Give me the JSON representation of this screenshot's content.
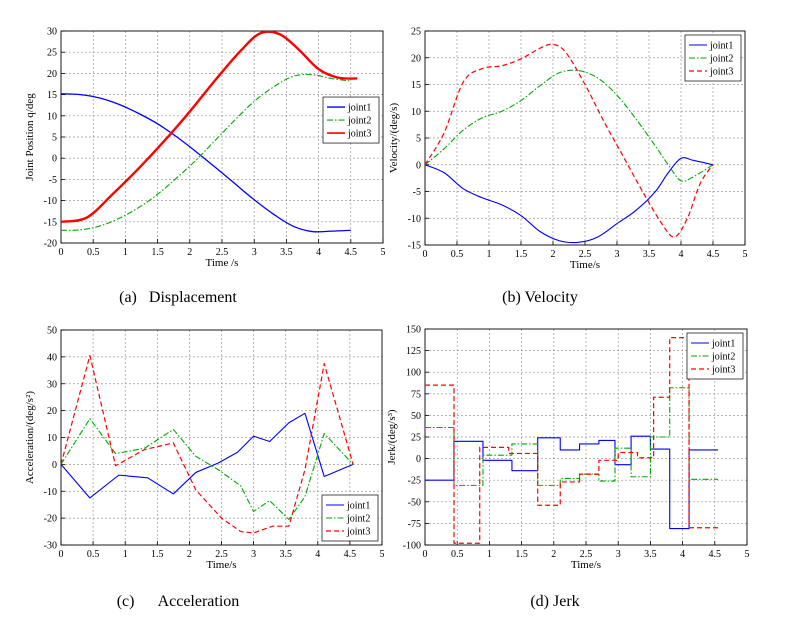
{
  "chart_data": [
    {
      "type": "line",
      "key": "a",
      "caption": "(a)   Displacement",
      "xlabel": "Time /s",
      "ylabel": "Joint Position q/deg",
      "xlim": [
        0,
        5
      ],
      "ylim": [
        -20,
        30
      ],
      "xticks": [
        0,
        0.5,
        1,
        1.5,
        2,
        2.5,
        3,
        3.5,
        4,
        4.5,
        5
      ],
      "yticks": [
        -20,
        -15,
        -10,
        -5,
        0,
        5,
        10,
        15,
        20,
        25,
        30
      ],
      "xtick_labels": [
        "0",
        "0.5",
        "1",
        "1.5",
        "2",
        "2.5",
        "3",
        "3.5",
        "4",
        "4.5",
        "5"
      ],
      "ytick_labels": [
        "-20",
        "-15",
        "-10",
        "-5",
        "0",
        "5",
        "10",
        "15",
        "20",
        "25",
        "30"
      ],
      "legend": "right",
      "series": [
        {
          "name": "joint1",
          "color": "#0000ff",
          "dash": "solid",
          "width": 1.3,
          "smooth": true,
          "x": [
            0,
            0.3,
            0.6,
            0.9,
            1.2,
            1.5,
            1.8,
            2.1,
            2.4,
            2.7,
            3.0,
            3.3,
            3.6,
            3.9,
            4.2,
            4.5
          ],
          "y": [
            15.2,
            15,
            14.2,
            12.7,
            10.6,
            8.1,
            5,
            1.5,
            -2.2,
            -6,
            -9.8,
            -13.2,
            -16,
            -17.3,
            -17.2,
            -17
          ]
        },
        {
          "name": "joint2",
          "color": "#00aa00",
          "dash": "dashdot",
          "width": 1.1,
          "smooth": true,
          "x": [
            0,
            0.3,
            0.6,
            0.9,
            1.2,
            1.5,
            1.8,
            2.1,
            2.4,
            2.7,
            3.0,
            3.3,
            3.6,
            3.9,
            4.2,
            4.5
          ],
          "y": [
            -17,
            -16.9,
            -16,
            -14.2,
            -11.7,
            -8.5,
            -4.6,
            -0.4,
            4.3,
            9,
            13.4,
            16.8,
            19.3,
            19.7,
            18.8,
            18.2
          ]
        },
        {
          "name": "joint3",
          "color": "#ff0000",
          "dash": "solid",
          "width": 2.4,
          "smooth": true,
          "x": [
            0,
            0.4,
            0.8,
            1.2,
            1.6,
            2.0,
            2.4,
            2.8,
            3.1,
            3.4,
            3.7,
            4.0,
            4.3,
            4.6
          ],
          "y": [
            -15,
            -14,
            -8.5,
            -2.5,
            4,
            11,
            18.5,
            25.5,
            29.5,
            29.2,
            25.5,
            21,
            19,
            18.8
          ]
        }
      ]
    },
    {
      "type": "line",
      "key": "b",
      "caption": "(b) Velocity",
      "xlabel": "Time/s",
      "ylabel": "Velocity/(deg/s)",
      "xlim": [
        0,
        5
      ],
      "ylim": [
        -15,
        25
      ],
      "xticks": [
        0,
        0.5,
        1,
        1.5,
        2,
        2.5,
        3,
        3.5,
        4,
        4.5,
        5
      ],
      "yticks": [
        -15,
        -10,
        -5,
        0,
        5,
        10,
        15,
        20,
        25
      ],
      "xtick_labels": [
        "0",
        "0.5",
        "1",
        "1.5",
        "2",
        "2.5",
        "3",
        "3.5",
        "4",
        "4.5",
        "5"
      ],
      "ytick_labels": [
        "-15",
        "-10",
        "-5",
        "0",
        "5",
        "10",
        "15",
        "20",
        "25"
      ],
      "legend": "top-right",
      "series": [
        {
          "name": "joint1",
          "color": "#0000ff",
          "dash": "solid",
          "width": 1.1,
          "smooth": true,
          "x": [
            0,
            0.3,
            0.6,
            0.9,
            1.2,
            1.5,
            1.8,
            2.1,
            2.4,
            2.7,
            3.0,
            3.3,
            3.6,
            3.8,
            4.0,
            4.2,
            4.5
          ],
          "y": [
            0,
            -1.5,
            -4.5,
            -6.2,
            -7.5,
            -9.5,
            -12.5,
            -14.2,
            -14.5,
            -13.5,
            -11,
            -8.5,
            -5,
            -1.5,
            1.2,
            0.8,
            0
          ]
        },
        {
          "name": "joint2",
          "color": "#00aa00",
          "dash": "dashdot",
          "width": 1.1,
          "smooth": true,
          "x": [
            0,
            0.3,
            0.6,
            0.9,
            1.2,
            1.5,
            1.8,
            2.1,
            2.4,
            2.7,
            3.0,
            3.3,
            3.6,
            3.8,
            4.0,
            4.2,
            4.5
          ],
          "y": [
            0,
            3,
            6.5,
            8.8,
            10,
            12,
            14.8,
            17.2,
            17.6,
            16.2,
            13,
            8.5,
            3.5,
            0,
            -3,
            -2.2,
            0
          ]
        },
        {
          "name": "joint3",
          "color": "#ff0000",
          "dash": "dashed",
          "width": 1.2,
          "smooth": true,
          "x": [
            0,
            0.3,
            0.6,
            0.9,
            1.2,
            1.5,
            1.8,
            2.0,
            2.2,
            2.5,
            2.8,
            3.1,
            3.4,
            3.7,
            3.9,
            4.1,
            4.3,
            4.5
          ],
          "y": [
            0,
            6,
            15.5,
            18,
            18.5,
            19.8,
            21.8,
            22.5,
            21,
            15,
            8,
            1.5,
            -5,
            -11,
            -13.5,
            -10,
            -3.5,
            0
          ]
        }
      ]
    },
    {
      "type": "line",
      "key": "c",
      "caption": "(c)      Acceleration",
      "xlabel": "Time/s",
      "ylabel": "Acceleration/(deg/s²)",
      "xlim": [
        0,
        5
      ],
      "ylim": [
        -30,
        50
      ],
      "xticks": [
        0,
        0.5,
        1,
        1.5,
        2,
        2.5,
        3,
        3.5,
        4,
        4.5,
        5
      ],
      "yticks": [
        -30,
        -20,
        -10,
        0,
        10,
        20,
        30,
        40,
        50
      ],
      "xtick_labels": [
        "0",
        "0.5",
        "1",
        "1.5",
        "2",
        "2.5",
        "3",
        "3.5",
        "4",
        "4.5",
        "5"
      ],
      "ytick_labels": [
        "-30",
        "-20",
        "-10",
        "0",
        "10",
        "20",
        "30",
        "40",
        "50"
      ],
      "legend": "bottom-right",
      "series": [
        {
          "name": "joint1",
          "color": "#0000ff",
          "dash": "solid",
          "width": 1.1,
          "smooth": false,
          "x": [
            0,
            0.45,
            0.9,
            1.35,
            1.75,
            2.1,
            2.45,
            2.75,
            3.0,
            3.25,
            3.55,
            3.8,
            4.1,
            4.55
          ],
          "y": [
            0,
            -12.5,
            -4,
            -5,
            -11,
            -3,
            0.5,
            4.5,
            10.5,
            8.5,
            15.5,
            19,
            -4.5,
            0
          ]
        },
        {
          "name": "joint2",
          "color": "#00aa00",
          "dash": "dashdot",
          "width": 1.1,
          "smooth": false,
          "x": [
            0,
            0.45,
            0.85,
            1.3,
            1.75,
            2.1,
            2.45,
            2.8,
            3.0,
            3.25,
            3.55,
            3.8,
            4.1,
            4.55
          ],
          "y": [
            0,
            17,
            4,
            6,
            13,
            3,
            -2,
            -8,
            -17.5,
            -13.5,
            -20.5,
            -12,
            11.5,
            0
          ]
        },
        {
          "name": "joint3",
          "color": "#ff0000",
          "dash": "dashed",
          "width": 1.2,
          "smooth": false,
          "x": [
            0,
            0.45,
            0.85,
            1.3,
            1.75,
            2.1,
            2.5,
            2.8,
            3.0,
            3.3,
            3.55,
            3.8,
            4.1,
            4.55
          ],
          "y": [
            0,
            40.5,
            -0.5,
            5.5,
            8,
            -9.5,
            -20,
            -25,
            -25.5,
            -23,
            -23,
            -2,
            37.5,
            0
          ]
        }
      ]
    },
    {
      "type": "line",
      "key": "d",
      "caption": "(d) Jerk",
      "xlabel": "Time/s",
      "ylabel": "Jerk/(deg/s³)",
      "xlim": [
        0,
        5
      ],
      "ylim": [
        -100,
        150
      ],
      "xticks": [
        0,
        0.5,
        1,
        1.5,
        2,
        2.5,
        3,
        3.5,
        4,
        4.5,
        5
      ],
      "yticks": [
        -100,
        -75,
        -50,
        -25,
        0,
        25,
        50,
        75,
        100,
        125,
        150
      ],
      "xtick_labels": [
        "0",
        "0.5",
        "1",
        "1.5",
        "2",
        "2.5",
        "3",
        "3.5",
        "4",
        "4.5",
        "5"
      ],
      "ytick_labels": [
        "-100",
        "-75",
        "-50",
        "-25",
        "0",
        "25",
        "50",
        "75",
        "100",
        "125",
        "150"
      ],
      "legend": "top-right",
      "series": [
        {
          "name": "joint1",
          "color": "#0000ff",
          "dash": "solid",
          "width": 1.1,
          "smooth": false,
          "x": [
            0,
            0.45,
            0.45,
            0.9,
            0.9,
            1.35,
            1.35,
            1.75,
            1.75,
            2.1,
            2.1,
            2.4,
            2.4,
            2.7,
            2.7,
            2.95,
            2.95,
            3.2,
            3.2,
            3.5,
            3.5,
            3.8,
            3.8,
            4.1,
            4.1,
            4.55
          ],
          "y": [
            -25,
            -25,
            20,
            20,
            -2,
            -2,
            -14,
            -14,
            24,
            24,
            10,
            10,
            17,
            17,
            21,
            21,
            -7,
            -7,
            26,
            26,
            11,
            11,
            -81,
            -81,
            10,
            10
          ]
        },
        {
          "name": "joint2",
          "color": "#00aa00",
          "dash": "dashdot",
          "width": 1.1,
          "smooth": false,
          "x": [
            0,
            0.45,
            0.45,
            0.9,
            0.9,
            1.35,
            1.35,
            1.75,
            1.75,
            2.1,
            2.1,
            2.4,
            2.4,
            2.7,
            2.7,
            2.95,
            2.95,
            3.2,
            3.2,
            3.5,
            3.5,
            3.8,
            3.8,
            4.1,
            4.1,
            4.55
          ],
          "y": [
            36,
            36,
            -31,
            -31,
            4,
            4,
            17,
            17,
            -31,
            -31,
            -23,
            -23,
            -18,
            -18,
            -26,
            -26,
            12,
            12,
            -21,
            -21,
            25,
            25,
            82,
            82,
            -24,
            -24
          ]
        },
        {
          "name": "joint3",
          "color": "#ff0000",
          "dash": "dashed",
          "width": 1.2,
          "smooth": false,
          "x": [
            0,
            0.45,
            0.45,
            0.85,
            0.85,
            1.3,
            1.3,
            1.75,
            1.75,
            2.1,
            2.1,
            2.4,
            2.4,
            2.7,
            2.7,
            3.0,
            3.0,
            3.3,
            3.3,
            3.55,
            3.55,
            3.8,
            3.8,
            4.1,
            4.1,
            4.55
          ],
          "y": [
            85,
            85,
            -98,
            -98,
            13,
            13,
            6,
            6,
            -54,
            -54,
            -27,
            -27,
            -18,
            -18,
            -2,
            -2,
            7,
            7,
            1,
            1,
            71,
            71,
            140,
            140,
            -80,
            -80
          ]
        }
      ]
    }
  ]
}
